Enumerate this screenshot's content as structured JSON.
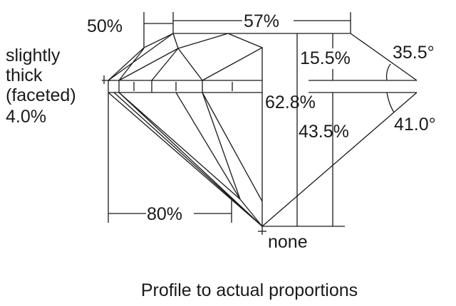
{
  "labels": {
    "crown_height_label": "50%",
    "table_label": "57%",
    "girdle_lines": [
      "slightly",
      "thick",
      "(faceted)",
      "4.0%"
    ],
    "crown_height_pct": "15.5%",
    "crown_angle": "35.5°",
    "total_depth": "62.8%",
    "pavilion_depth": "43.5%",
    "pavilion_angle": "41.0°",
    "lower_half_label": "80%",
    "culet": "none"
  },
  "caption": "Profile to actual proportions"
}
